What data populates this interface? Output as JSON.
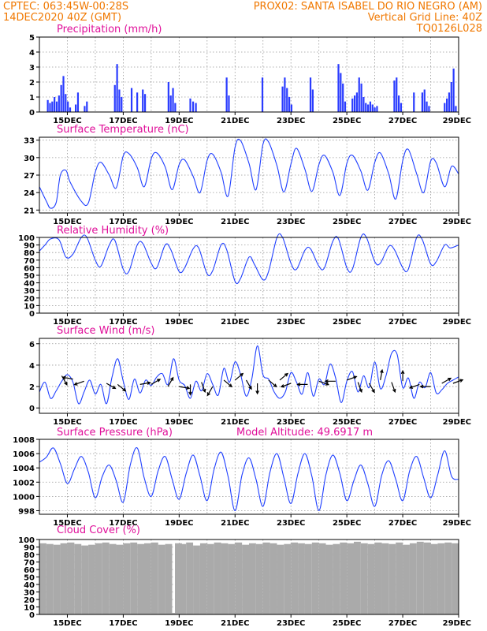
{
  "header": {
    "line1_left": "CPTEC:   063:45W-00:28S",
    "line1_right": "PROX02: SANTA ISABEL DO RIO NEGRO (AM)",
    "line2_left": "14DEC2020 40Z (GMT)",
    "line2_right": "Vertical Grid Line: 40Z",
    "line3_right": "TQ0126L028"
  },
  "x_axis": {
    "start_day": 14.0,
    "end_day": 29.0,
    "tick_labels": [
      "15DEC",
      "17DEC",
      "19DEC",
      "21DEC",
      "23DEC",
      "25DEC",
      "27DEC",
      "29DEC"
    ],
    "tick_days": [
      15,
      17,
      19,
      21,
      23,
      25,
      27,
      29
    ]
  },
  "colors": {
    "header": "#f07800",
    "title": "#e0109a",
    "series": "#2040ff",
    "bar": "#2a3cff",
    "cloud": "#aaaaaa"
  },
  "chart_data": [
    {
      "type": "bar",
      "title": "Precipitation (mm/h)",
      "ylim": [
        0,
        5
      ],
      "yticks": [
        0,
        1,
        2,
        3,
        4,
        5
      ],
      "x": [
        14.3,
        14.38,
        14.46,
        14.54,
        14.62,
        14.7,
        14.78,
        14.86,
        14.94,
        15.02,
        15.1,
        15.3,
        15.38,
        15.62,
        15.7,
        16.7,
        16.78,
        16.86,
        16.94,
        17.3,
        17.5,
        17.7,
        17.78,
        18.62,
        18.7,
        18.78,
        18.86,
        19.4,
        19.5,
        19.6,
        20.7,
        20.78,
        21.98,
        22.7,
        22.78,
        22.86,
        22.94,
        23.02,
        23.7,
        23.78,
        24.7,
        24.78,
        24.86,
        24.94,
        25.2,
        25.28,
        25.36,
        25.44,
        25.52,
        25.6,
        25.68,
        25.76,
        25.84,
        25.92,
        26.0,
        26.08,
        26.7,
        26.78,
        26.86,
        26.94,
        27.4,
        27.7,
        27.78,
        27.86,
        27.94,
        28.5,
        28.58,
        28.66,
        28.74,
        28.82,
        28.9
      ],
      "values": [
        0.8,
        0.6,
        0.7,
        1.0,
        0.7,
        1.1,
        1.8,
        2.4,
        1.2,
        0.7,
        0.3,
        0.5,
        1.3,
        0.4,
        0.7,
        1.8,
        3.2,
        1.5,
        1.0,
        1.6,
        1.3,
        1.5,
        1.2,
        2.0,
        1.1,
        1.6,
        0.6,
        0.9,
        0.7,
        0.6,
        2.3,
        1.1,
        2.3,
        1.7,
        2.3,
        1.6,
        1.0,
        0.5,
        2.3,
        1.5,
        3.2,
        2.6,
        1.9,
        0.7,
        0.9,
        1.1,
        1.3,
        2.3,
        1.9,
        1.0,
        0.6,
        0.5,
        0.7,
        0.5,
        0.3,
        0.4,
        2.1,
        2.3,
        1.1,
        0.6,
        1.3,
        1.3,
        1.5,
        0.7,
        0.4,
        0.6,
        0.9,
        1.3,
        2.0,
        2.9,
        0.4
      ]
    },
    {
      "type": "line",
      "title": "Surface Temperature (nC)",
      "ylim": [
        20.5,
        33.5
      ],
      "yticks": [
        21,
        24,
        27,
        30,
        33
      ],
      "x": [
        14.0,
        14.25,
        14.4,
        14.6,
        14.75,
        14.95,
        15.1,
        15.5,
        15.75,
        16.0,
        16.2,
        16.5,
        16.75,
        17.0,
        17.2,
        17.5,
        17.75,
        18.0,
        18.2,
        18.5,
        18.75,
        19.0,
        19.2,
        19.5,
        19.75,
        20.0,
        20.2,
        20.5,
        20.75,
        21.0,
        21.2,
        21.5,
        21.75,
        22.0,
        22.2,
        22.5,
        22.75,
        23.0,
        23.2,
        23.5,
        23.75,
        24.0,
        24.2,
        24.5,
        24.75,
        25.0,
        25.2,
        25.5,
        25.75,
        26.0,
        26.2,
        26.5,
        26.75,
        27.0,
        27.2,
        27.5,
        27.75,
        28.0,
        28.2,
        28.5,
        28.75,
        29.0
      ],
      "values": [
        25.0,
        22.5,
        21.3,
        22.3,
        27.0,
        27.8,
        25.8,
        22.5,
        22.2,
        27.5,
        29.2,
        27.0,
        24.8,
        30.3,
        30.7,
        28.3,
        25.0,
        29.8,
        30.8,
        28.4,
        24.5,
        28.8,
        29.6,
        26.8,
        24.0,
        29.5,
        30.6,
        27.5,
        23.4,
        31.8,
        32.9,
        29.0,
        24.5,
        32.3,
        32.7,
        28.6,
        24.1,
        28.9,
        31.6,
        28.0,
        24.2,
        28.8,
        30.4,
        27.5,
        23.5,
        29.0,
        30.4,
        27.7,
        24.4,
        29.2,
        30.8,
        27.2,
        22.9,
        29.5,
        31.4,
        27.2,
        24.0,
        29.4,
        29.1,
        25.0,
        28.5,
        27.2
      ]
    },
    {
      "type": "line",
      "title": "Relative Humidity (%)",
      "ylim": [
        0,
        100
      ],
      "yticks": [
        0,
        10,
        20,
        30,
        40,
        50,
        60,
        70,
        80,
        90,
        100
      ],
      "x": [
        14.0,
        14.2,
        14.4,
        14.7,
        14.95,
        15.2,
        15.5,
        15.7,
        16.0,
        16.2,
        16.5,
        16.7,
        17.0,
        17.2,
        17.5,
        17.7,
        18.0,
        18.2,
        18.5,
        18.7,
        19.0,
        19.2,
        19.5,
        19.7,
        20.0,
        20.2,
        20.5,
        20.7,
        21.0,
        21.2,
        21.5,
        21.7,
        22.0,
        22.2,
        22.5,
        22.7,
        23.0,
        23.2,
        23.5,
        23.7,
        24.0,
        24.2,
        24.5,
        24.7,
        25.0,
        25.2,
        25.5,
        25.7,
        26.0,
        26.2,
        26.5,
        26.7,
        27.0,
        27.2,
        27.5,
        27.7,
        28.0,
        28.2,
        28.5,
        28.7,
        29.0
      ],
      "values": [
        82,
        90,
        98,
        97,
        74,
        78,
        100,
        100,
        70,
        62,
        90,
        96,
        58,
        55,
        90,
        92,
        66,
        60,
        90,
        84,
        55,
        60,
        85,
        86,
        52,
        56,
        90,
        84,
        42,
        46,
        74,
        64,
        44,
        55,
        100,
        100,
        66,
        58,
        83,
        85,
        62,
        60,
        95,
        98,
        60,
        58,
        100,
        100,
        68,
        66,
        88,
        84,
        60,
        58,
        100,
        97,
        65,
        68,
        90,
        86,
        90
      ]
    },
    {
      "type": "line",
      "title": "Surface Wind (m/s)",
      "ylim": [
        -0.5,
        6.5
      ],
      "yticks": [
        0,
        2,
        4,
        6
      ],
      "x": [
        14.0,
        14.2,
        14.4,
        14.6,
        14.8,
        15.0,
        15.2,
        15.4,
        15.6,
        15.8,
        16.0,
        16.2,
        16.4,
        16.6,
        16.8,
        17.0,
        17.2,
        17.4,
        17.6,
        17.8,
        18.0,
        18.2,
        18.4,
        18.6,
        18.8,
        19.0,
        19.2,
        19.4,
        19.6,
        19.8,
        20.0,
        20.2,
        20.4,
        20.6,
        20.8,
        21.0,
        21.2,
        21.4,
        21.6,
        21.8,
        22.0,
        22.2,
        22.4,
        22.6,
        22.8,
        23.0,
        23.2,
        23.4,
        23.6,
        23.8,
        24.0,
        24.2,
        24.4,
        24.6,
        24.8,
        25.0,
        25.2,
        25.4,
        25.6,
        25.8,
        26.0,
        26.2,
        26.4,
        26.6,
        26.8,
        27.0,
        27.2,
        27.4,
        27.6,
        27.8,
        28.0,
        28.2,
        28.4,
        28.6,
        28.8,
        29.0
      ],
      "values": [
        1.5,
        2.4,
        0.9,
        1.6,
        2.5,
        3.1,
        2.4,
        0.4,
        1.5,
        2.6,
        1.3,
        2.2,
        0.4,
        2.9,
        4.6,
        2.5,
        0.8,
        2.7,
        1.4,
        2.6,
        2.1,
        2.9,
        3.2,
        2.2,
        4.6,
        2.6,
        2.1,
        0.9,
        2.5,
        1.6,
        3.2,
        2.2,
        1.2,
        3.7,
        2.4,
        4.3,
        3.1,
        1.1,
        2.7,
        5.8,
        3.1,
        2.7,
        1.5,
        0.9,
        1.5,
        3.3,
        2.4,
        1.3,
        3.3,
        1.1,
        2.7,
        2.2,
        4.1,
        2.8,
        0.5,
        2.5,
        3.4,
        1.5,
        3.0,
        1.9,
        4.3,
        1.8,
        3.0,
        5.1,
        5.0,
        1.9,
        2.8,
        0.9,
        2.4,
        1.9,
        3.3,
        1.4,
        1.7,
        2.3,
        2.6,
        2.9
      ]
    },
    {
      "type": "line",
      "title": "Surface Pressure (hPa)",
      "subtitle": "Model Altitude: 49.6917 m",
      "ylim": [
        997.5,
        1008
      ],
      "yticks": [
        998,
        1000,
        1002,
        1004,
        1006,
        1008
      ],
      "x": [
        14.0,
        14.25,
        14.5,
        14.75,
        15.0,
        15.25,
        15.5,
        15.75,
        16.0,
        16.25,
        16.5,
        16.75,
        17.0,
        17.25,
        17.5,
        17.75,
        18.0,
        18.25,
        18.5,
        18.75,
        19.0,
        19.25,
        19.5,
        19.75,
        20.0,
        20.25,
        20.5,
        20.75,
        21.0,
        21.25,
        21.5,
        21.75,
        22.0,
        22.25,
        22.5,
        22.75,
        23.0,
        23.25,
        23.5,
        23.75,
        24.0,
        24.25,
        24.5,
        24.75,
        25.0,
        25.25,
        25.5,
        25.75,
        26.0,
        26.25,
        26.5,
        26.75,
        27.0,
        27.25,
        27.5,
        27.75,
        28.0,
        28.25,
        28.5,
        28.75,
        29.0
      ],
      "values": [
        1004.8,
        1005.5,
        1006.8,
        1004.6,
        1001.8,
        1003.8,
        1005.6,
        1003.4,
        999.8,
        1002.8,
        1004.4,
        1002.2,
        999.2,
        1004.4,
        1006.8,
        1002.6,
        1000.0,
        1003.6,
        1005.6,
        1002.4,
        999.6,
        1003.2,
        1005.8,
        1002.8,
        999.4,
        1003.8,
        1006.2,
        1002.8,
        998.0,
        1003.0,
        1005.4,
        1002.4,
        998.6,
        1003.4,
        1006.0,
        1002.6,
        999.0,
        1003.2,
        1006.0,
        1002.8,
        998.0,
        1003.0,
        1005.8,
        1003.2,
        999.4,
        1002.2,
        1004.4,
        1001.8,
        998.6,
        1003.0,
        1005.0,
        1002.4,
        999.4,
        1003.6,
        1005.6,
        1002.6,
        999.8,
        1003.0,
        1006.4,
        1002.8,
        1002.4
      ]
    },
    {
      "type": "bar",
      "title": "Cloud Cover (%)",
      "ylim": [
        0,
        100
      ],
      "yticks": [
        0,
        10,
        20,
        30,
        40,
        50,
        60,
        70,
        80,
        90,
        100
      ],
      "x": [
        14.0,
        14.25,
        14.5,
        14.75,
        15.0,
        15.25,
        15.5,
        15.75,
        16.0,
        16.25,
        16.5,
        16.75,
        17.0,
        17.25,
        17.5,
        17.75,
        18.0,
        18.25,
        18.5,
        18.75,
        18.85,
        19.0,
        19.25,
        19.5,
        19.75,
        20.0,
        20.25,
        20.5,
        20.75,
        21.0,
        21.25,
        21.5,
        21.75,
        22.0,
        22.25,
        22.5,
        22.75,
        23.0,
        23.25,
        23.5,
        23.75,
        24.0,
        24.25,
        24.5,
        24.75,
        25.0,
        25.25,
        25.5,
        25.75,
        26.0,
        26.25,
        26.5,
        26.75,
        27.0,
        27.25,
        27.5,
        27.75,
        28.0,
        28.25,
        28.5,
        28.75
      ],
      "values": [
        95,
        94,
        93,
        95,
        96,
        94,
        92,
        93,
        95,
        96,
        94,
        93,
        95,
        96,
        94,
        95,
        96,
        93,
        94,
        2,
        95,
        94,
        96,
        92,
        95,
        94,
        96,
        95,
        94,
        96,
        93,
        95,
        94,
        96,
        95,
        93,
        94,
        96,
        95,
        94,
        96,
        95,
        93,
        94,
        96,
        95,
        97,
        95,
        94,
        96,
        95,
        94,
        96,
        93,
        95,
        97,
        96,
        94,
        95,
        96,
        95
      ]
    }
  ],
  "wind_arrows": {
    "x": [
      14.8,
      15.2,
      15.6,
      16.4,
      16.8,
      17.6,
      18.0,
      18.6,
      19.0,
      19.4,
      19.8,
      20.2,
      20.6,
      21.0,
      21.4,
      21.8,
      22.2,
      22.6,
      23.0,
      23.6,
      24.0,
      24.6,
      25.0,
      25.4,
      25.8,
      26.2,
      26.6,
      27.0,
      27.6,
      28.0,
      28.4,
      28.8
    ],
    "speed": [
      3.0,
      2.7,
      2.5,
      2.3,
      2.2,
      2.2,
      2.2,
      2.0,
      2.0,
      2.2,
      2.4,
      2.0,
      2.6,
      2.6,
      2.6,
      2.3,
      2.6,
      2.6,
      2.3,
      2.2,
      2.5,
      2.5,
      2.6,
      2.4,
      2.3,
      2.6,
      2.4,
      2.5,
      2.2,
      2.0,
      2.3,
      2.3
    ],
    "direction_deg": [
      -60,
      170,
      200,
      -30,
      -40,
      10,
      30,
      60,
      -10,
      -90,
      -70,
      -120,
      -40,
      40,
      -60,
      -90,
      -40,
      40,
      200,
      180,
      -20,
      180,
      20,
      -70,
      -60,
      80,
      -70,
      90,
      200,
      180,
      30,
      20
    ]
  }
}
